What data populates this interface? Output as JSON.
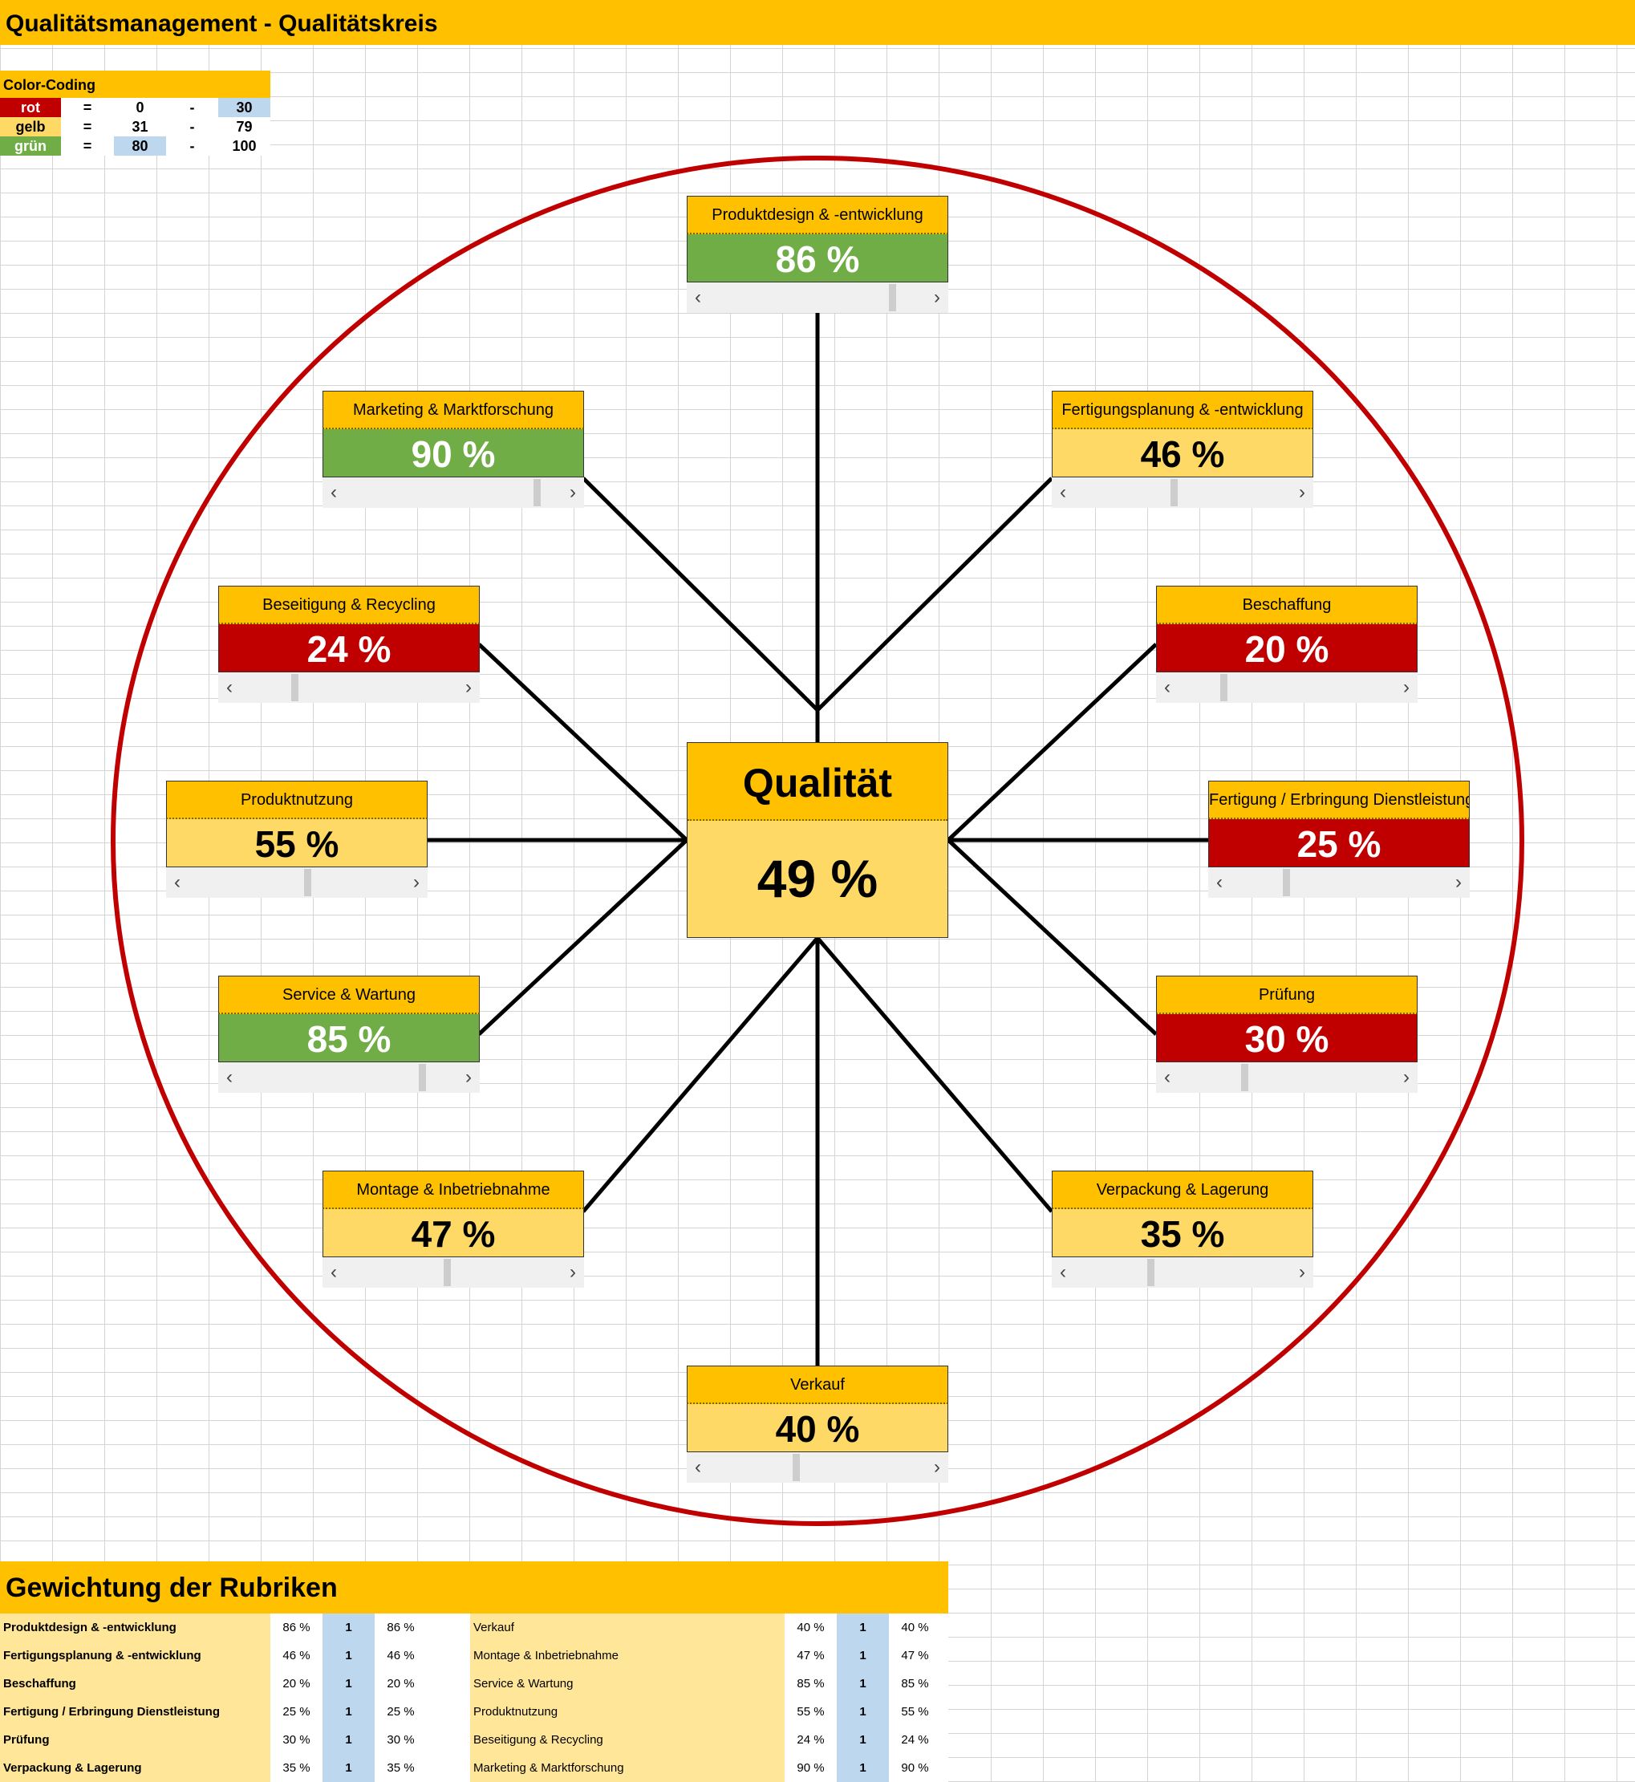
{
  "title": "Qualitätsmanagement - Qualitätskreis",
  "legend": {
    "header": "Color-Coding",
    "rows": [
      {
        "name": "rot",
        "eq": "=",
        "from": "0",
        "dash": "-",
        "to": "30"
      },
      {
        "name": "gelb",
        "eq": "=",
        "from": "31",
        "dash": "-",
        "to": "79"
      },
      {
        "name": "grün",
        "eq": "=",
        "from": "80",
        "dash": "-",
        "to": "100"
      }
    ]
  },
  "colors": {
    "red": "#c00000",
    "yellow": "#ffd966",
    "green": "#70ad47",
    "header": "#ffc000",
    "circle": "#c00000"
  },
  "center": {
    "label": "Qualität",
    "value": "49 %",
    "level": 49
  },
  "categories": [
    {
      "label": "Produktdesign & -entwicklung",
      "value": "86 %",
      "level": 86,
      "color": "green"
    },
    {
      "label": "Fertigungsplanung & -entwicklung",
      "value": "46 %",
      "level": 46,
      "color": "yellow"
    },
    {
      "label": "Beschaffung",
      "value": "20 %",
      "level": 20,
      "color": "red"
    },
    {
      "label": "Fertigung / Erbringung Dienstleistung",
      "value": "25 %",
      "level": 25,
      "color": "red"
    },
    {
      "label": "Prüfung",
      "value": "30 %",
      "level": 30,
      "color": "red"
    },
    {
      "label": "Verpackung & Lagerung",
      "value": "35 %",
      "level": 35,
      "color": "yellow"
    },
    {
      "label": "Verkauf",
      "value": "40 %",
      "level": 40,
      "color": "yellow"
    },
    {
      "label": "Montage & Inbetriebnahme",
      "value": "47 %",
      "level": 47,
      "color": "yellow"
    },
    {
      "label": "Service & Wartung",
      "value": "85 %",
      "level": 85,
      "color": "green"
    },
    {
      "label": "Produktnutzung",
      "value": "55 %",
      "level": 55,
      "color": "yellow"
    },
    {
      "label": "Beseitigung & Recycling",
      "value": "24 %",
      "level": 24,
      "color": "red"
    },
    {
      "label": "Marketing & Marktforschung",
      "value": "90 %",
      "level": 90,
      "color": "green"
    }
  ],
  "scroll_arrows": {
    "left": "‹",
    "right": "›"
  },
  "weights": {
    "header": "Gewichtung der Rubriken",
    "left": [
      {
        "name": "Produktdesign & -entwicklung",
        "pct": "86 %",
        "weight": "1",
        "result": "86 %"
      },
      {
        "name": "Fertigungsplanung & -entwicklung",
        "pct": "46 %",
        "weight": "1",
        "result": "46 %"
      },
      {
        "name": "Beschaffung",
        "pct": "20 %",
        "weight": "1",
        "result": "20 %"
      },
      {
        "name": "Fertigung / Erbringung Dienstleistung",
        "pct": "25 %",
        "weight": "1",
        "result": "25 %"
      },
      {
        "name": "Prüfung",
        "pct": "30 %",
        "weight": "1",
        "result": "30 %"
      },
      {
        "name": "Verpackung & Lagerung",
        "pct": "35 %",
        "weight": "1",
        "result": "35 %"
      }
    ],
    "right": [
      {
        "name": "Verkauf",
        "pct": "40 %",
        "weight": "1",
        "result": "40 %"
      },
      {
        "name": "Montage & Inbetriebnahme",
        "pct": "47 %",
        "weight": "1",
        "result": "47 %"
      },
      {
        "name": "Service & Wartung",
        "pct": "85 %",
        "weight": "1",
        "result": "85 %"
      },
      {
        "name": "Produktnutzung",
        "pct": "55 %",
        "weight": "1",
        "result": "55 %"
      },
      {
        "name": "Beseitigung & Recycling",
        "pct": "24 %",
        "weight": "1",
        "result": "24 %"
      },
      {
        "name": "Marketing & Marktforschung",
        "pct": "90 %",
        "weight": "1",
        "result": "90 %"
      }
    ]
  }
}
